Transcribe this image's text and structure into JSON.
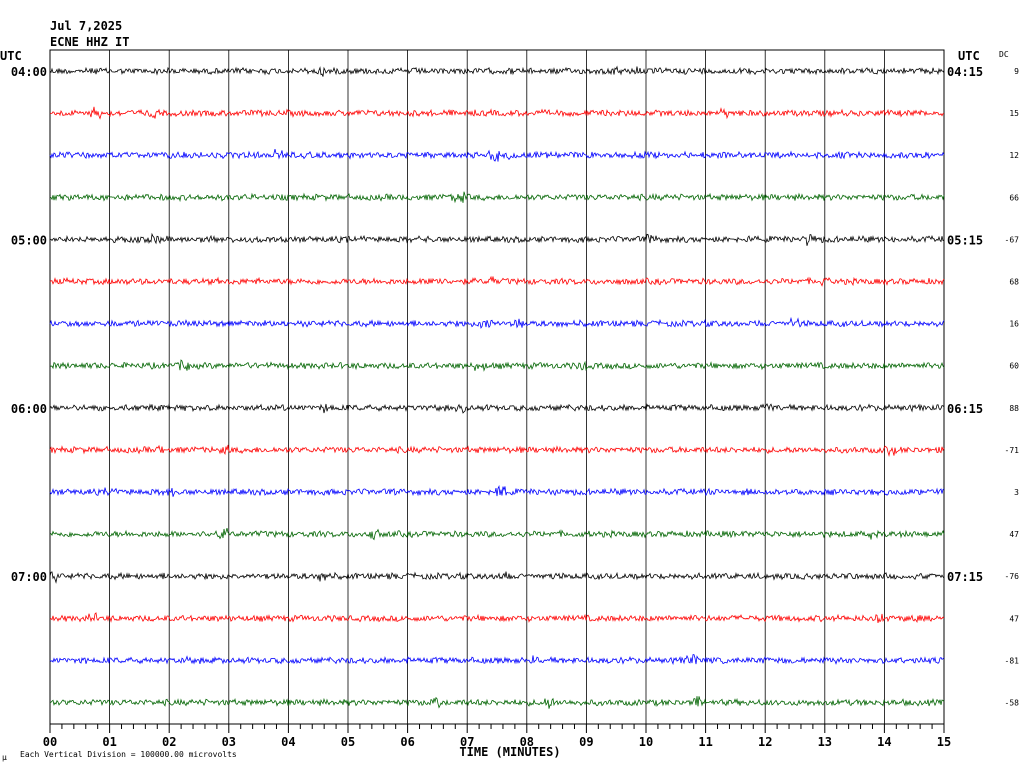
{
  "header": {
    "date": "Jul 7,2025",
    "station": "ECNE HHZ IT",
    "utc_left": "UTC",
    "utc_right": "UTC",
    "dc_label": "DC"
  },
  "footer": {
    "mark": "µ",
    "scale_note": "Each Vertical Division = 100000.00 microvolts"
  },
  "chart_data": {
    "type": "line",
    "title": "",
    "xlabel": "TIME (MINUTES)",
    "ylabel": "",
    "xlim": [
      0,
      15
    ],
    "x_ticks": [
      "00",
      "01",
      "02",
      "03",
      "04",
      "05",
      "06",
      "07",
      "08",
      "09",
      "10",
      "11",
      "12",
      "13",
      "14",
      "15"
    ],
    "row_colors": [
      "#000000",
      "#ff0000",
      "#0000ff",
      "#006400"
    ],
    "series": [
      {
        "left_time": "04:00",
        "right_time": "04:15",
        "dc": "9"
      },
      {
        "left_time": "",
        "right_time": "",
        "dc": "15"
      },
      {
        "left_time": "",
        "right_time": "",
        "dc": "12"
      },
      {
        "left_time": "",
        "right_time": "",
        "dc": "66"
      },
      {
        "left_time": "05:00",
        "right_time": "05:15",
        "dc": "-67"
      },
      {
        "left_time": "",
        "right_time": "",
        "dc": "68"
      },
      {
        "left_time": "",
        "right_time": "",
        "dc": "16"
      },
      {
        "left_time": "",
        "right_time": "",
        "dc": "60"
      },
      {
        "left_time": "06:00",
        "right_time": "06:15",
        "dc": "88"
      },
      {
        "left_time": "",
        "right_time": "",
        "dc": "-71"
      },
      {
        "left_time": "",
        "right_time": "",
        "dc": "3"
      },
      {
        "left_time": "",
        "right_time": "",
        "dc": "47"
      },
      {
        "left_time": "07:00",
        "right_time": "07:15",
        "dc": "-76"
      },
      {
        "left_time": "",
        "right_time": "",
        "dc": "47"
      },
      {
        "left_time": "",
        "right_time": "",
        "dc": "-81"
      },
      {
        "left_time": "",
        "right_time": "",
        "dc": "-58"
      }
    ]
  }
}
